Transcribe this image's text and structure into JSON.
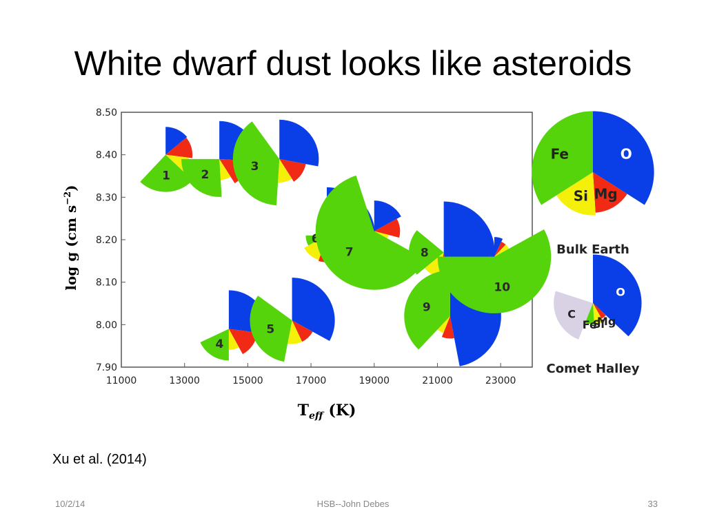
{
  "slide": {
    "title": "White dwarf dust looks like asteroids",
    "citation": "Xu et al. (2014)",
    "footer_date": "10/2/14",
    "footer_center": "HSB--John Debes",
    "footer_page": "33"
  },
  "chart_data": {
    "type": "scatter",
    "subtype": "pie markers",
    "xlabel_main": "T",
    "xlabel_sub": "eff",
    "xlabel_unit": "(K)",
    "ylabel": "log g (cm s",
    "ylabel_exp": "−2",
    "ylabel_close": ")",
    "xlim": [
      11000,
      24000
    ],
    "ylim": [
      7.9,
      8.5
    ],
    "xticks": [
      "11000",
      "13000",
      "15000",
      "17000",
      "19000",
      "21000",
      "23000"
    ],
    "yticks": [
      "8.50",
      "8.40",
      "8.30",
      "8.20",
      "8.10",
      "8.00",
      "7.90"
    ],
    "grid": false,
    "element_colors": {
      "O": "#0a3ee6",
      "Mg": "#f02a14",
      "Si": "#f5f00a",
      "Fe": "#55d40c",
      "C": "#d8d2e4"
    },
    "stars": [
      {
        "label": "1",
        "teff": 12400,
        "logg": 8.4,
        "fractions": {
          "O": 0.14,
          "Mg": 0.13,
          "Si": 0.1,
          "Fe": 0.25
        }
      },
      {
        "label": "2",
        "teff": 14100,
        "logg": 8.39,
        "fractions": {
          "O": 0.26,
          "Mg": 0.15,
          "Si": 0.08,
          "Fe": 0.26
        }
      },
      {
        "label": "3",
        "teff": 16000,
        "logg": 8.39,
        "fractions": {
          "O": 0.28,
          "Mg": 0.13,
          "Si": 0.1,
          "Fe": 0.39
        }
      },
      {
        "label": "6",
        "teff": 17500,
        "logg": 8.21,
        "fractions": {
          "O": 0.42,
          "Mg": 0.13,
          "Si": 0.12,
          "Fe": 0.08
        }
      },
      {
        "label": "7",
        "teff": 19000,
        "logg": 8.22,
        "fractions": {
          "O": 0.17,
          "Mg": 0.12,
          "Si": 0.04,
          "Fe": 0.62
        }
      },
      {
        "label": "8",
        "teff": 21200,
        "logg": 8.17,
        "fractions": {
          "O": 0.47,
          "Mg": 0.06,
          "Si": 0.11,
          "Fe": 0.22
        }
      },
      {
        "label": "9",
        "teff": 21400,
        "logg": 8.02,
        "fractions": {
          "O": 0.47,
          "Mg": 0.09,
          "Si": 0.06,
          "Fe": 0.38
        }
      },
      {
        "label": "10",
        "teff": 22800,
        "logg": 8.16,
        "fractions": {
          "O": 0.07,
          "Mg": 0.05,
          "Si": 0.05,
          "Fe": 0.58
        }
      },
      {
        "label": "4",
        "teff": 14400,
        "logg": 7.99,
        "fractions": {
          "O": 0.27,
          "Mg": 0.15,
          "Si": 0.08,
          "Fe": 0.18
        }
      },
      {
        "label": "5",
        "teff": 16400,
        "logg": 8.01,
        "fractions": {
          "O": 0.33,
          "Mg": 0.1,
          "Si": 0.1,
          "Fe": 0.32
        }
      }
    ],
    "reference_pies": [
      {
        "name": "Bulk Earth",
        "fractions": {
          "O": 0.34,
          "Mg": 0.15,
          "Si": 0.17,
          "Fe": 0.34
        },
        "labels": {
          "O": "O",
          "Mg": "Mg",
          "Si": "Si",
          "Fe": "Fe"
        }
      },
      {
        "name": "Comet Halley",
        "fractions": {
          "O": 0.37,
          "Mg": 0.05,
          "Si": 0.07,
          "Fe": 0.07,
          "C": 0.24
        },
        "labels": {
          "O": "O",
          "Mg": "Mg",
          "Si": "Si",
          "Fe": "Fe",
          "C": "C"
        }
      }
    ]
  }
}
